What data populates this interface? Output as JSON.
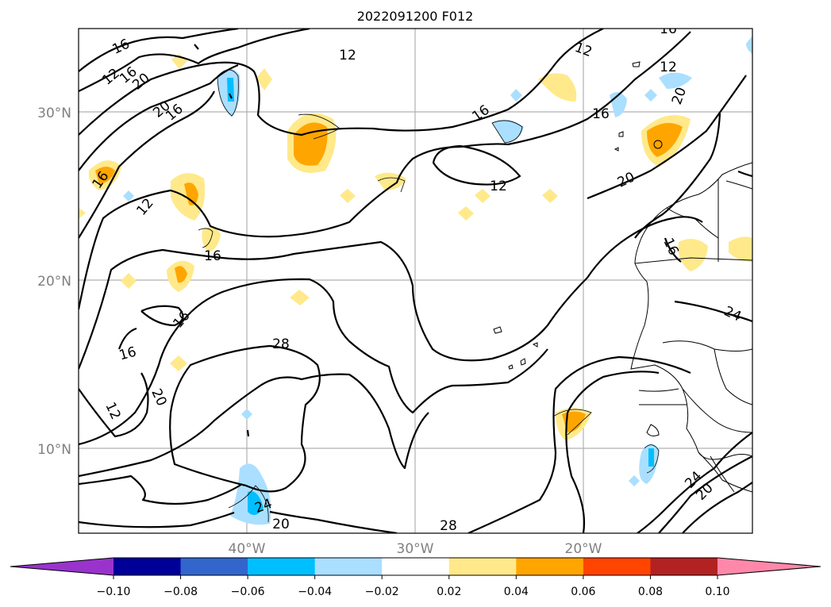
{
  "title": "2022091200 F012",
  "lat_labels": [
    "30°N",
    "20°N",
    "10°N"
  ],
  "lon_labels": [
    "40°W",
    "30°W",
    "20°W"
  ],
  "colorbar": {
    "colors": [
      "#9933cc",
      "#000099",
      "#3366cc",
      "#00bfff",
      "#aadfff",
      "#ffffff",
      "#ffe98a",
      "#ffa500",
      "#ff4500",
      "#b22222",
      "#ff88aa"
    ],
    "ticks": [
      "−0.10",
      "−0.08",
      "−0.06",
      "−0.04",
      "−0.02",
      "0.02",
      "0.04",
      "0.06",
      "0.08",
      "0.10"
    ]
  },
  "contour_labels": [
    "16",
    "12",
    "16",
    "20",
    "12",
    "16",
    "20",
    "16",
    "12",
    "16",
    "12",
    "20",
    "16",
    "16",
    "12",
    "16",
    "16",
    "12",
    "20",
    "28",
    "24",
    "20",
    "28",
    "24",
    "20",
    "16"
  ]
}
